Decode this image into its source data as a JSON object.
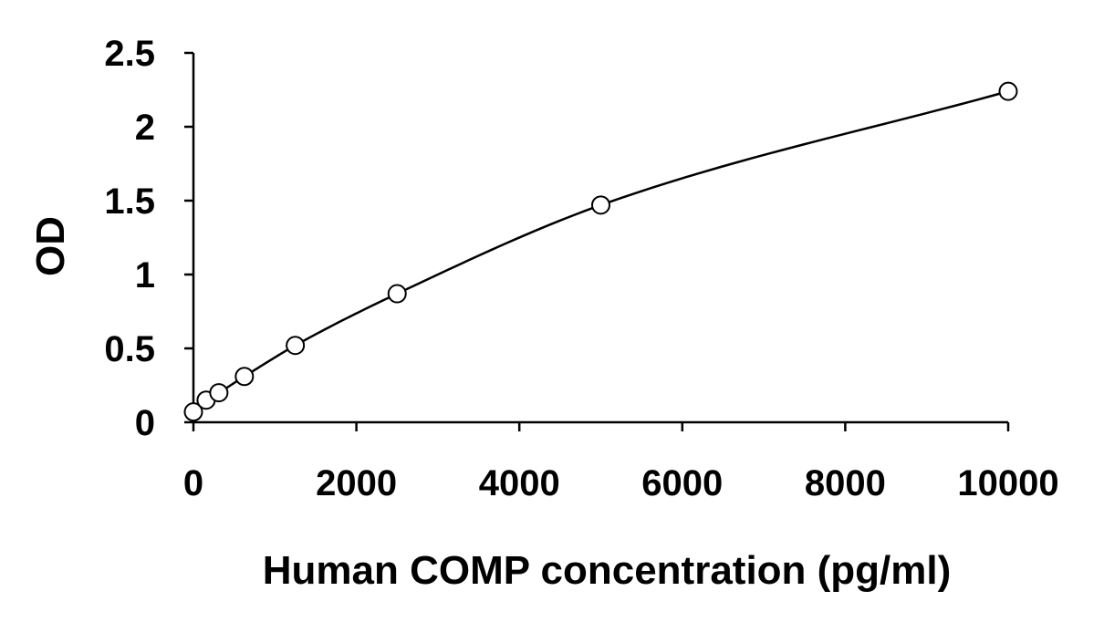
{
  "chart_data": {
    "type": "scatter",
    "title": "",
    "xlabel": "Human COMP concentration (pg/ml)",
    "ylabel": "OD",
    "xlim": [
      0,
      10000
    ],
    "ylim": [
      0,
      2.5
    ],
    "x_ticks": [
      0,
      2000,
      4000,
      6000,
      8000,
      10000
    ],
    "x_tick_labels": [
      "0",
      "2000",
      "4000",
      "6000",
      "8000",
      "10000"
    ],
    "y_ticks": [
      0,
      0.5,
      1,
      1.5,
      2,
      2.5
    ],
    "y_tick_labels": [
      "0",
      "0.5",
      "1",
      "1.5",
      "2",
      "2.5"
    ],
    "grid": false,
    "legend": "none",
    "series": [
      {
        "x": [
          0,
          156,
          312,
          625,
          1250,
          2500,
          5000,
          10000
        ],
        "y": [
          0.07,
          0.15,
          0.2,
          0.31,
          0.52,
          0.87,
          1.47,
          2.24
        ],
        "marker": "open-circle",
        "fit_line": "smooth curve",
        "color": "#000000"
      }
    ]
  }
}
